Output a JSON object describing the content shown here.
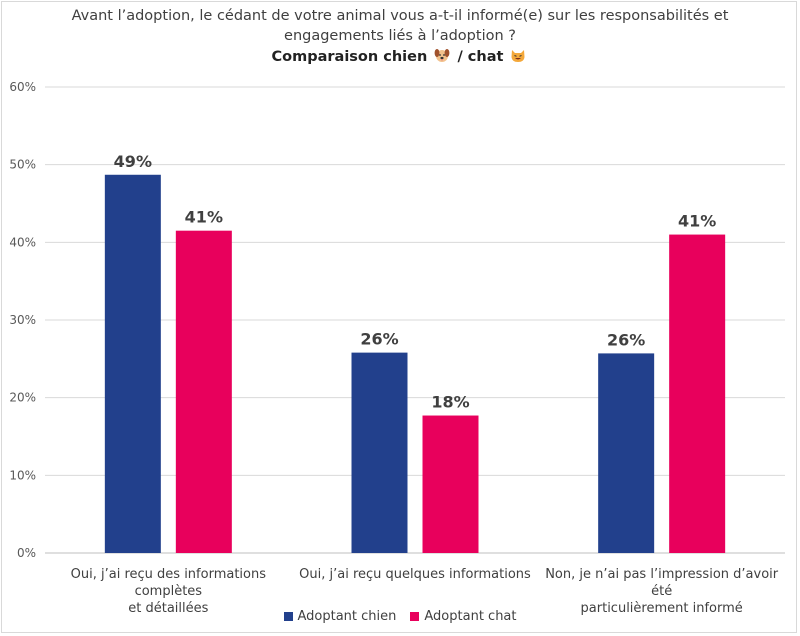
{
  "chart_data": {
    "type": "bar",
    "title_line1": "Avant l’adoption, le cédant de votre animal vous a-t-il informé(e) sur les responsabilités et",
    "title_line2": "engagements liés à l’adoption ?",
    "subtitle_prefix": "Comparaison chien",
    "subtitle_sep": "/ chat",
    "categories": [
      "Oui, j’ai reçu des informations complètes et détaillées",
      "Oui, j’ai reçu quelques informations",
      "Non, je n’ai pas l’impression d’avoir été particulièrement informé"
    ],
    "category_lines": [
      [
        "Oui, j’ai reçu des informations complètes",
        "et détaillées"
      ],
      [
        "Oui, j’ai reçu quelques informations"
      ],
      [
        "Non, je n’ai pas l’impression d’avoir été",
        "particulièrement informé"
      ]
    ],
    "series": [
      {
        "name": "Adoptant chien",
        "values": [
          48.7,
          25.8,
          25.7
        ],
        "labels": [
          "49%",
          "26%",
          "26%"
        ],
        "color": "#22408c"
      },
      {
        "name": "Adoptant chat",
        "values": [
          41.5,
          17.7,
          41.0
        ],
        "labels": [
          "41%",
          "18%",
          "41%"
        ],
        "color": "#e8005c"
      }
    ],
    "ylim": [
      0,
      60
    ],
    "yticks": [
      "0%",
      "10%",
      "20%",
      "30%",
      "40%",
      "50%",
      "60%"
    ],
    "grid": true,
    "legend_position": "bottom"
  }
}
